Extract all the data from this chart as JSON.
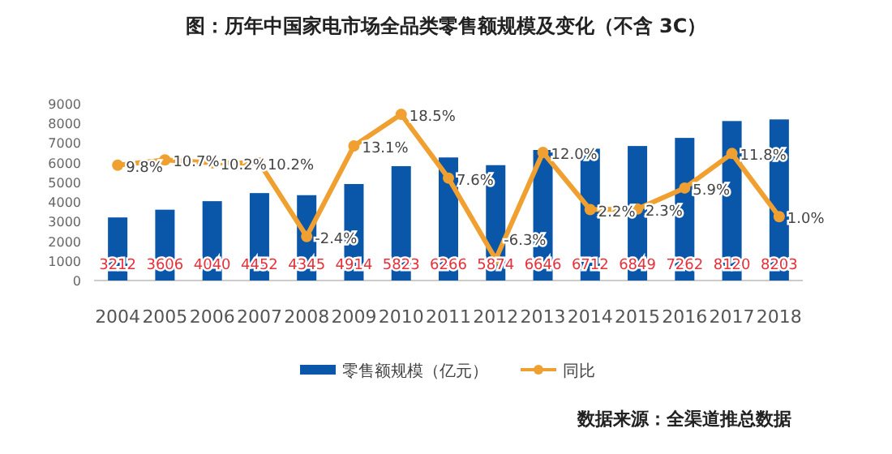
{
  "chart_data": {
    "type": "bar",
    "title": "图：历年中国家电市场全品类零售额规模及变化（不含 3C）",
    "categories": [
      "2004",
      "2005",
      "2006",
      "2007",
      "2008",
      "2009",
      "2010",
      "2011",
      "2012",
      "2013",
      "2014",
      "2015",
      "2016",
      "2017",
      "2018"
    ],
    "series": [
      {
        "name": "零售额规模（亿元）",
        "color": "#0a56a8",
        "values": [
          3212,
          3606,
          4040,
          4452,
          4345,
          4914,
          5823,
          6266,
          5874,
          6646,
          6712,
          6849,
          7262,
          8120,
          8203
        ],
        "value_labels": [
          "3212",
          "3606",
          "4040",
          "4452",
          "4345",
          "4914",
          "5823",
          "6266",
          "5874",
          "6646",
          "6712",
          "6849",
          "7262",
          "8120",
          "8203"
        ]
      },
      {
        "name": "同比",
        "type": "line",
        "axis": "y2",
        "color": "#f0a030",
        "values": [
          9.8,
          10.7,
          10.2,
          10.2,
          -2.4,
          13.1,
          18.5,
          7.6,
          -6.3,
          12.0,
          2.2,
          2.3,
          5.9,
          11.8,
          1.0
        ],
        "value_labels": [
          "9.8%",
          "10.7%",
          "10.2%",
          "10.2%",
          "-2.4%",
          "13.1%",
          "18.5%",
          "7.6%",
          "-6.3%",
          "12.0%",
          "2.2%",
          "2.3%",
          "5.9%",
          "11.8%",
          "1.0%"
        ]
      }
    ],
    "ylim": [
      0,
      9000
    ],
    "yticks": [
      0,
      1000,
      2000,
      3000,
      4000,
      5000,
      6000,
      7000,
      8000,
      9000
    ],
    "legend": "bottom",
    "marker": "circle",
    "grid": false,
    "annotations": [
      "数据来源：全渠道推总数据"
    ]
  }
}
